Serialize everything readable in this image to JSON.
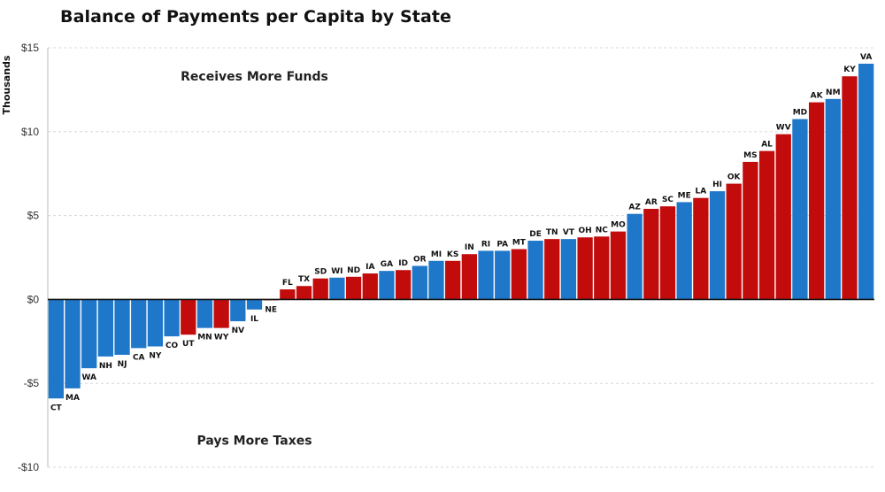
{
  "chart_data": {
    "type": "bar",
    "title": "Balance of Payments per Capita by State",
    "ylabel": "Thousands",
    "xlabel": "",
    "ylim": [
      -10,
      15
    ],
    "yticks": [
      {
        "value": 15,
        "label": "$15"
      },
      {
        "value": 10,
        "label": "$10"
      },
      {
        "value": 5,
        "label": "$5"
      },
      {
        "value": 0,
        "label": "$0"
      },
      {
        "value": -5,
        "label": "-$5"
      },
      {
        "value": -10,
        "label": "-$10"
      }
    ],
    "grid": true,
    "annotations": [
      {
        "text": "Receives More Funds",
        "x_value": 12,
        "y_value": 13.3
      },
      {
        "text": "Pays More Taxes",
        "x_value": 12,
        "y_value": -8.4
      }
    ],
    "colors": {
      "blue": "#1f77c9",
      "red": "#c20c0c"
    },
    "categories": [
      "CT",
      "MA",
      "WA",
      "NH",
      "NJ",
      "CA",
      "NY",
      "CO",
      "UT",
      "MN",
      "WY",
      "NV",
      "IL",
      "NE",
      "FL",
      "TX",
      "SD",
      "WI",
      "ND",
      "IA",
      "GA",
      "ID",
      "OR",
      "MI",
      "KS",
      "IN",
      "RI",
      "PA",
      "MT",
      "DE",
      "TN",
      "VT",
      "OH",
      "NC",
      "MO",
      "AZ",
      "AR",
      "SC",
      "ME",
      "LA",
      "HI",
      "OK",
      "MS",
      "AL",
      "WV",
      "MD",
      "AK",
      "NM",
      "KY",
      "VA"
    ],
    "values": [
      -5.9,
      -5.3,
      -4.1,
      -3.4,
      -3.3,
      -2.9,
      -2.8,
      -2.2,
      -2.1,
      -1.7,
      -1.7,
      -1.3,
      -0.6,
      -0.05,
      0.6,
      0.8,
      1.25,
      1.3,
      1.35,
      1.55,
      1.7,
      1.75,
      2.0,
      2.3,
      2.3,
      2.7,
      2.9,
      2.9,
      3.0,
      3.5,
      3.6,
      3.6,
      3.7,
      3.75,
      4.05,
      5.1,
      5.4,
      5.55,
      5.8,
      6.05,
      6.45,
      6.9,
      8.2,
      8.85,
      9.85,
      10.75,
      11.75,
      11.95,
      13.3,
      14.05
    ],
    "bar_colors": [
      "blue",
      "blue",
      "blue",
      "blue",
      "blue",
      "blue",
      "blue",
      "blue",
      "red",
      "blue",
      "red",
      "blue",
      "blue",
      "red",
      "red",
      "red",
      "red",
      "blue",
      "red",
      "red",
      "blue",
      "red",
      "blue",
      "blue",
      "red",
      "red",
      "blue",
      "blue",
      "red",
      "blue",
      "red",
      "blue",
      "red",
      "red",
      "red",
      "blue",
      "red",
      "red",
      "blue",
      "red",
      "blue",
      "red",
      "red",
      "red",
      "red",
      "blue",
      "red",
      "blue",
      "red",
      "blue"
    ]
  }
}
